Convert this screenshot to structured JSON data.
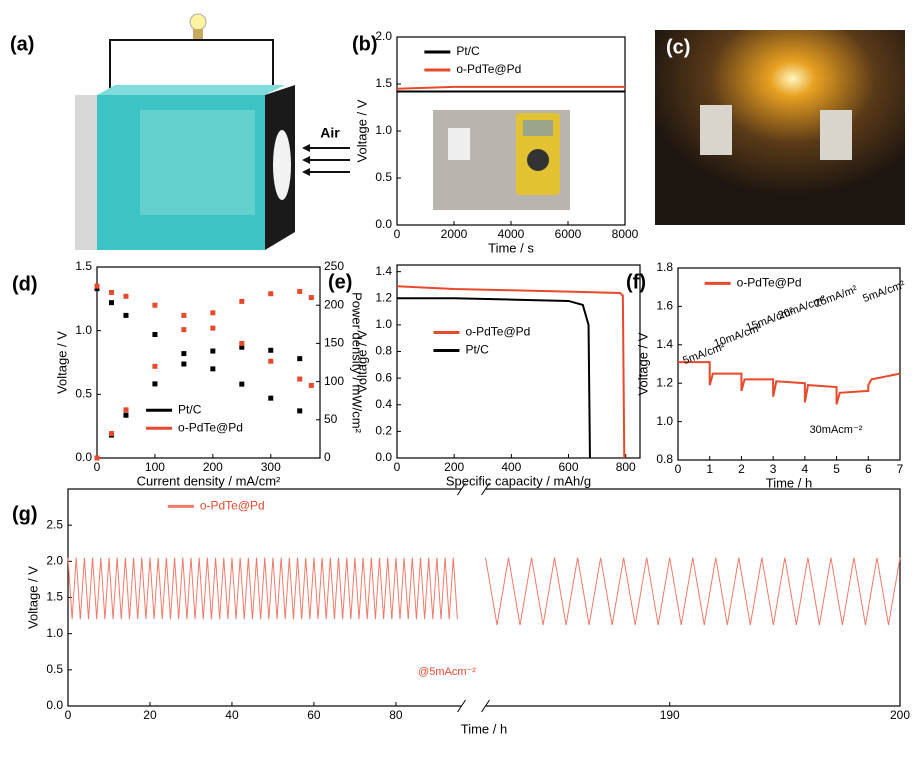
{
  "figure": {
    "panel_a": {
      "label": "(a)",
      "arrow_label": "Air"
    },
    "panel_c": {
      "label": "(c)"
    }
  },
  "chart_data": [
    {
      "type": "line",
      "label": "(b)",
      "xlabel": "Time / s",
      "ylabel": "Voltage / V",
      "xlim": [
        0,
        8000
      ],
      "xticks": [
        0,
        2000,
        4000,
        6000,
        8000
      ],
      "ylim": [
        0,
        2.0
      ],
      "yticks": [
        {
          "value": 0,
          "label": "0.0"
        },
        0.5,
        {
          "value": 1,
          "label": "1.0"
        },
        1.5,
        {
          "value": 2,
          "label": "2.0"
        }
      ],
      "legend": "upper left",
      "series": [
        {
          "name": "Pt/C",
          "color": "#000000",
          "x": [
            0,
            2000,
            4000,
            6000,
            8000
          ],
          "values": [
            1.42,
            1.42,
            1.42,
            1.42,
            1.42
          ]
        },
        {
          "name": "o-PdTe@Pd",
          "color": "#e8492b",
          "x": [
            0,
            2000,
            4000,
            6000,
            8000
          ],
          "values": [
            1.45,
            1.47,
            1.47,
            1.47,
            1.47
          ]
        }
      ]
    },
    {
      "type": "scatter",
      "label": "(d)",
      "xlabel": "Current density / mA/cm²",
      "ylabel": "Voltage / V",
      "y2label": "Power density / mW/cm²",
      "xlim": [
        0,
        385
      ],
      "xticks": [
        0,
        100,
        200,
        300
      ],
      "ylim": [
        0,
        1.5
      ],
      "yticks": [
        {
          "value": 0,
          "label": "0.0"
        },
        0.5,
        {
          "value": 1,
          "label": "1.0"
        },
        1.5
      ],
      "y2lim": [
        0,
        250
      ],
      "y2ticks": [
        0,
        50,
        100,
        150,
        200,
        250
      ],
      "legend": "lower left",
      "series": [
        {
          "name": "Pt/C",
          "color": "#000000",
          "x": [
            0,
            25,
            50,
            100,
            150,
            200,
            250,
            300,
            350
          ],
          "values": [
            1.33,
            1.22,
            1.12,
            0.97,
            0.82,
            0.7,
            0.58,
            0.47,
            0.37
          ]
        },
        {
          "name": "Pt/C",
          "color": "#000000",
          "axis": "y2",
          "x": [
            0,
            25,
            50,
            100,
            150,
            200,
            250,
            300,
            350
          ],
          "values": [
            0,
            30,
            56,
            97,
            123,
            140,
            145,
            141,
            130
          ]
        },
        {
          "name": "o-PdTe@Pd",
          "color": "#e8492b",
          "x": [
            0,
            25,
            50,
            100,
            150,
            200,
            250,
            300,
            350,
            370
          ],
          "values": [
            1.35,
            1.3,
            1.27,
            1.2,
            1.12,
            1.02,
            0.9,
            0.76,
            0.62,
            0.57
          ]
        },
        {
          "name": "o-PdTe@Pd",
          "color": "#e8492b",
          "axis": "y2",
          "x": [
            0,
            25,
            50,
            100,
            150,
            200,
            250,
            300,
            350,
            370
          ],
          "values": [
            0,
            32,
            63,
            120,
            168,
            190,
            205,
            215,
            218,
            210
          ]
        }
      ]
    },
    {
      "type": "line",
      "label": "(e)",
      "xlabel": "Specific capacity / mAh/g",
      "ylabel": "Voltage / V",
      "xlim": [
        0,
        850
      ],
      "xticks": [
        0,
        200,
        400,
        600,
        800
      ],
      "ylim": [
        0,
        1.45
      ],
      "yticks": [
        {
          "value": 0,
          "label": "0.0"
        },
        0.2,
        0.4,
        0.6,
        0.8,
        {
          "value": 1,
          "label": "1.0"
        },
        1.2,
        1.4
      ],
      "legend": "center left",
      "series": [
        {
          "name": "o-PdTe@Pd",
          "color": "#e8492b",
          "x": [
            0,
            200,
            400,
            600,
            780,
            790,
            795
          ],
          "values": [
            1.29,
            1.27,
            1.26,
            1.25,
            1.24,
            1.22,
            0
          ]
        },
        {
          "name": "Pt/C",
          "color": "#000000",
          "x": [
            0,
            200,
            400,
            600,
            650,
            670,
            675
          ],
          "values": [
            1.2,
            1.2,
            1.19,
            1.18,
            1.15,
            1.0,
            0
          ]
        }
      ]
    },
    {
      "type": "line",
      "label": "(f)",
      "xlabel": "Time / h",
      "ylabel": "Voltage / V",
      "xlim": [
        0,
        7
      ],
      "xticks": [
        0,
        1,
        2,
        3,
        4,
        5,
        6,
        7
      ],
      "ylim": [
        0.8,
        1.8
      ],
      "yticks": [
        0.8,
        {
          "value": 1,
          "label": "1.0"
        },
        1.2,
        1.4,
        1.6,
        1.8
      ],
      "legend": "upper left",
      "annotations": [
        "5mA/cm²",
        "10mA/cm²",
        "15mA/cm²",
        "20mA/cm²",
        "25mA/m²",
        "30mAcm⁻²",
        "5mA/cm²"
      ],
      "series": [
        {
          "name": "o-PdTe@Pd",
          "color": "#e8492b",
          "x": [
            0,
            1,
            1,
            1.1,
            2,
            2,
            2.1,
            3,
            3,
            3.1,
            4,
            4,
            4.1,
            5,
            5,
            5.1,
            6,
            6,
            6.1,
            7
          ],
          "values": [
            1.31,
            1.31,
            1.19,
            1.25,
            1.25,
            1.16,
            1.22,
            1.22,
            1.13,
            1.21,
            1.2,
            1.1,
            1.19,
            1.18,
            1.09,
            1.15,
            1.16,
            1.19,
            1.22,
            1.25
          ]
        }
      ]
    },
    {
      "type": "line",
      "label": "(g)",
      "xlabel": "Time / h",
      "ylabel": "Voltage / V",
      "xlim": [
        0,
        200
      ],
      "xbreak": [
        96,
        182
      ],
      "xticks": [
        0,
        20,
        40,
        60,
        80,
        190,
        200
      ],
      "ylim": [
        0,
        3.0
      ],
      "yticks": [
        {
          "value": 0,
          "label": "0.0"
        },
        0.5,
        {
          "value": 1,
          "label": "1.0"
        },
        1.5,
        {
          "value": 2,
          "label": "2.0"
        },
        2.5
      ],
      "legend": "upper left",
      "annotations": [
        "@5mAcm⁻²"
      ],
      "series": [
        {
          "name": "o-PdTe@Pd",
          "color": "#f07a6a",
          "x": [
            0,
            1,
            2,
            3,
            4,
            5,
            6,
            7,
            8,
            9,
            10,
            11,
            12,
            13,
            14,
            15,
            16,
            17,
            18,
            19,
            20,
            21,
            22,
            23,
            24,
            25,
            26,
            27,
            28,
            29,
            30,
            31,
            32,
            33,
            34,
            35,
            36,
            37,
            38,
            39,
            40,
            41,
            42,
            43,
            44,
            45,
            46,
            47,
            48,
            49,
            50,
            51,
            52,
            53,
            54,
            55,
            56,
            57,
            58,
            59,
            60,
            61,
            62,
            63,
            64,
            65,
            66,
            67,
            68,
            69,
            70,
            71,
            72,
            73,
            74,
            75,
            76,
            77,
            78,
            79,
            80,
            81,
            82,
            83,
            84,
            85,
            86,
            87,
            88,
            89,
            90,
            91,
            92,
            93,
            94,
            95,
            96,
            182,
            182.5,
            183,
            183.5,
            184,
            184.5,
            185,
            185.5,
            186,
            186.5,
            187,
            187.5,
            188,
            188.5,
            189,
            189.5,
            190,
            190.5,
            191,
            191.5,
            192,
            192.5,
            193,
            193.5,
            194,
            194.5,
            195,
            195.5,
            196,
            196.5,
            197,
            197.5,
            198,
            198.5,
            199,
            199.5,
            200
          ],
          "values": [
            2.05,
            1.2,
            2.05,
            1.2,
            2.05,
            1.2,
            2.05,
            1.2,
            2.05,
            1.2,
            2.05,
            1.2,
            2.05,
            1.2,
            2.05,
            1.2,
            2.05,
            1.2,
            2.05,
            1.2,
            2.05,
            1.2,
            2.05,
            1.2,
            2.05,
            1.2,
            2.05,
            1.2,
            2.05,
            1.2,
            2.05,
            1.2,
            2.05,
            1.2,
            2.05,
            1.2,
            2.05,
            1.2,
            2.05,
            1.2,
            2.05,
            1.2,
            2.05,
            1.2,
            2.05,
            1.2,
            2.05,
            1.2,
            2.05,
            1.2,
            2.05,
            1.2,
            2.05,
            1.2,
            2.05,
            1.2,
            2.05,
            1.2,
            2.05,
            1.2,
            2.05,
            1.2,
            2.05,
            1.2,
            2.05,
            1.2,
            2.05,
            1.2,
            2.05,
            1.2,
            2.05,
            1.2,
            2.05,
            1.2,
            2.05,
            1.2,
            2.05,
            1.2,
            2.05,
            1.2,
            2.05,
            1.2,
            2.05,
            1.2,
            2.05,
            1.2,
            2.05,
            1.2,
            2.05,
            1.2,
            2.05,
            1.2,
            2.05,
            1.2,
            2.05,
            1.2,
            null,
            2.05,
            1.12,
            2.05,
            1.12,
            2.05,
            1.12,
            2.05,
            1.12,
            2.05,
            1.12,
            2.05,
            1.12,
            2.05,
            1.12,
            2.05,
            1.12,
            2.05,
            1.12,
            2.05,
            1.12,
            2.05,
            1.12,
            2.05,
            1.12,
            2.05,
            1.12,
            2.05,
            1.12,
            2.05,
            1.12,
            2.05,
            1.12,
            2.05,
            1.12,
            2.05,
            1.12,
            2.05
          ]
        }
      ]
    }
  ]
}
